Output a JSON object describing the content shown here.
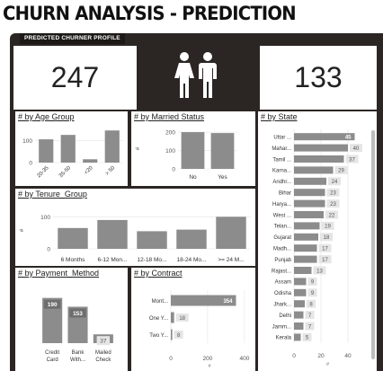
{
  "title": "CHURN ANALYSIS - PREDICTION",
  "profile_label": "PREDICTED CHURNER PROFILE",
  "kpis": {
    "left_value": "247",
    "right_value": "133"
  },
  "icons": {
    "people": "female-male-icon"
  },
  "colors": {
    "bar": "#8c8c8c",
    "frame": "#2b2624",
    "label_bg": "#e5e5e5"
  },
  "charts": {
    "age": {
      "title": "# by Age Group"
    },
    "married": {
      "title": "# by Married Status"
    },
    "tenure": {
      "title": "# by Tenure_Group"
    },
    "payment": {
      "title": "# by Payment_Method"
    },
    "contract": {
      "title": "# by Contract"
    },
    "state": {
      "title": "# by State"
    }
  },
  "chart_data": [
    {
      "type": "bar",
      "title": "# by Age Group",
      "categories": [
        "20-35",
        "35-50",
        "<20",
        "> 50"
      ],
      "values": [
        105,
        125,
        15,
        145
      ],
      "yticks": [
        "0",
        "100"
      ],
      "ylim": [
        0,
        150
      ]
    },
    {
      "type": "bar",
      "title": "# by Married Status",
      "categories": [
        "No",
        "Yes"
      ],
      "values": [
        200,
        195
      ],
      "yticks": [
        "0",
        "100",
        "200"
      ],
      "ylabel": "#",
      "ylim": [
        0,
        220
      ]
    },
    {
      "type": "bar",
      "title": "# by Tenure_Group",
      "categories": [
        "6 Months",
        "6-12 Mon...",
        "12-18 Mo...",
        "18-24 Mo...",
        ">= 24 M..."
      ],
      "values": [
        65,
        90,
        55,
        60,
        100
      ],
      "yticks": [
        "0",
        "100"
      ],
      "ylabel": "#",
      "ylim": [
        0,
        115
      ]
    },
    {
      "type": "bar",
      "title": "# by Payment_Method",
      "categories": [
        "Credit Card",
        "Bank With...",
        "Mailed Check"
      ],
      "category_lines": [
        [
          "Credit",
          "Card"
        ],
        [
          "Bank",
          "With..."
        ],
        [
          "Mailed",
          "Check"
        ]
      ],
      "values": [
        190,
        153,
        37
      ],
      "data_labels": [
        "190",
        "153",
        "37"
      ],
      "ylim": [
        0,
        200
      ]
    },
    {
      "type": "bar",
      "orientation": "horizontal",
      "title": "# by Contract",
      "categories": [
        "Mont...",
        "One Y...",
        "Two Y..."
      ],
      "values": [
        354,
        18,
        8
      ],
      "data_labels": [
        "354",
        "18",
        "8"
      ],
      "xticks": [
        "0",
        "200",
        "400"
      ],
      "xlabel": "#",
      "xlim": [
        0,
        420
      ]
    },
    {
      "type": "bar",
      "orientation": "horizontal",
      "title": "# by State",
      "categories": [
        "Uttar ...",
        "Mahar...",
        "Tamil ...",
        "Karna...",
        "Andhr...",
        "Bihar",
        "Harya...",
        "West ...",
        "Telan...",
        "Gujarat",
        "Madh...",
        "Punjab",
        "Rajast...",
        "Assam",
        "Odisha",
        "Jhark...",
        "Delhi",
        "Jamm...",
        "Kerala"
      ],
      "values": [
        45,
        40,
        37,
        29,
        24,
        23,
        23,
        22,
        19,
        18,
        17,
        17,
        13,
        9,
        9,
        8,
        7,
        7,
        5
      ],
      "data_labels": [
        "45",
        "40",
        "37",
        "29",
        "24",
        "23",
        "23",
        "22",
        "19",
        "18",
        "17",
        "17",
        "13",
        "9",
        "9",
        "8",
        "7",
        "7",
        "5"
      ],
      "xticks": [
        "0",
        "20",
        "40"
      ],
      "xlabel": "#",
      "xlim": [
        0,
        50
      ]
    }
  ]
}
